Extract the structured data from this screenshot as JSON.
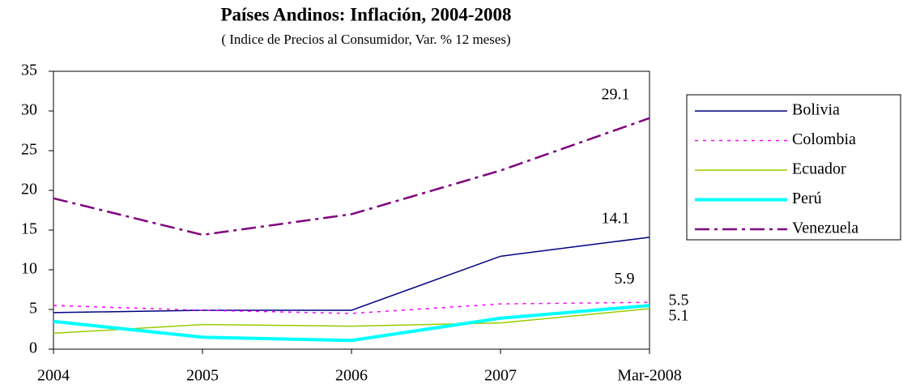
{
  "chart_data": {
    "type": "line",
    "title": "Países Andinos: Inflación, 2004-2008",
    "subtitle": "( Indice de Precios al Consumidor, Var. % 12 meses)",
    "categories": [
      "2004",
      "2005",
      "2006",
      "2007",
      "Mar-2008"
    ],
    "series": [
      {
        "name": "Bolivia",
        "color": "#000080",
        "values": [
          4.6,
          4.9,
          4.9,
          11.7,
          14.1
        ]
      },
      {
        "name": "Colombia",
        "color": "#ff00ff",
        "values": [
          5.5,
          4.9,
          4.5,
          5.7,
          5.9
        ]
      },
      {
        "name": "Ecuador",
        "color": "#99cc00",
        "values": [
          2.0,
          3.1,
          2.9,
          3.3,
          5.1
        ]
      },
      {
        "name": "Perú",
        "color": "#00ffff",
        "values": [
          3.5,
          1.5,
          1.1,
          3.9,
          5.5
        ]
      },
      {
        "name": "Venezuela",
        "color": "#800080",
        "values": [
          19.0,
          14.4,
          17.0,
          22.5,
          29.1
        ]
      }
    ],
    "ylim": [
      0,
      35
    ],
    "yticks": [
      0,
      5,
      10,
      15,
      20,
      25,
      30,
      35
    ],
    "grid": false,
    "legend": "right"
  }
}
